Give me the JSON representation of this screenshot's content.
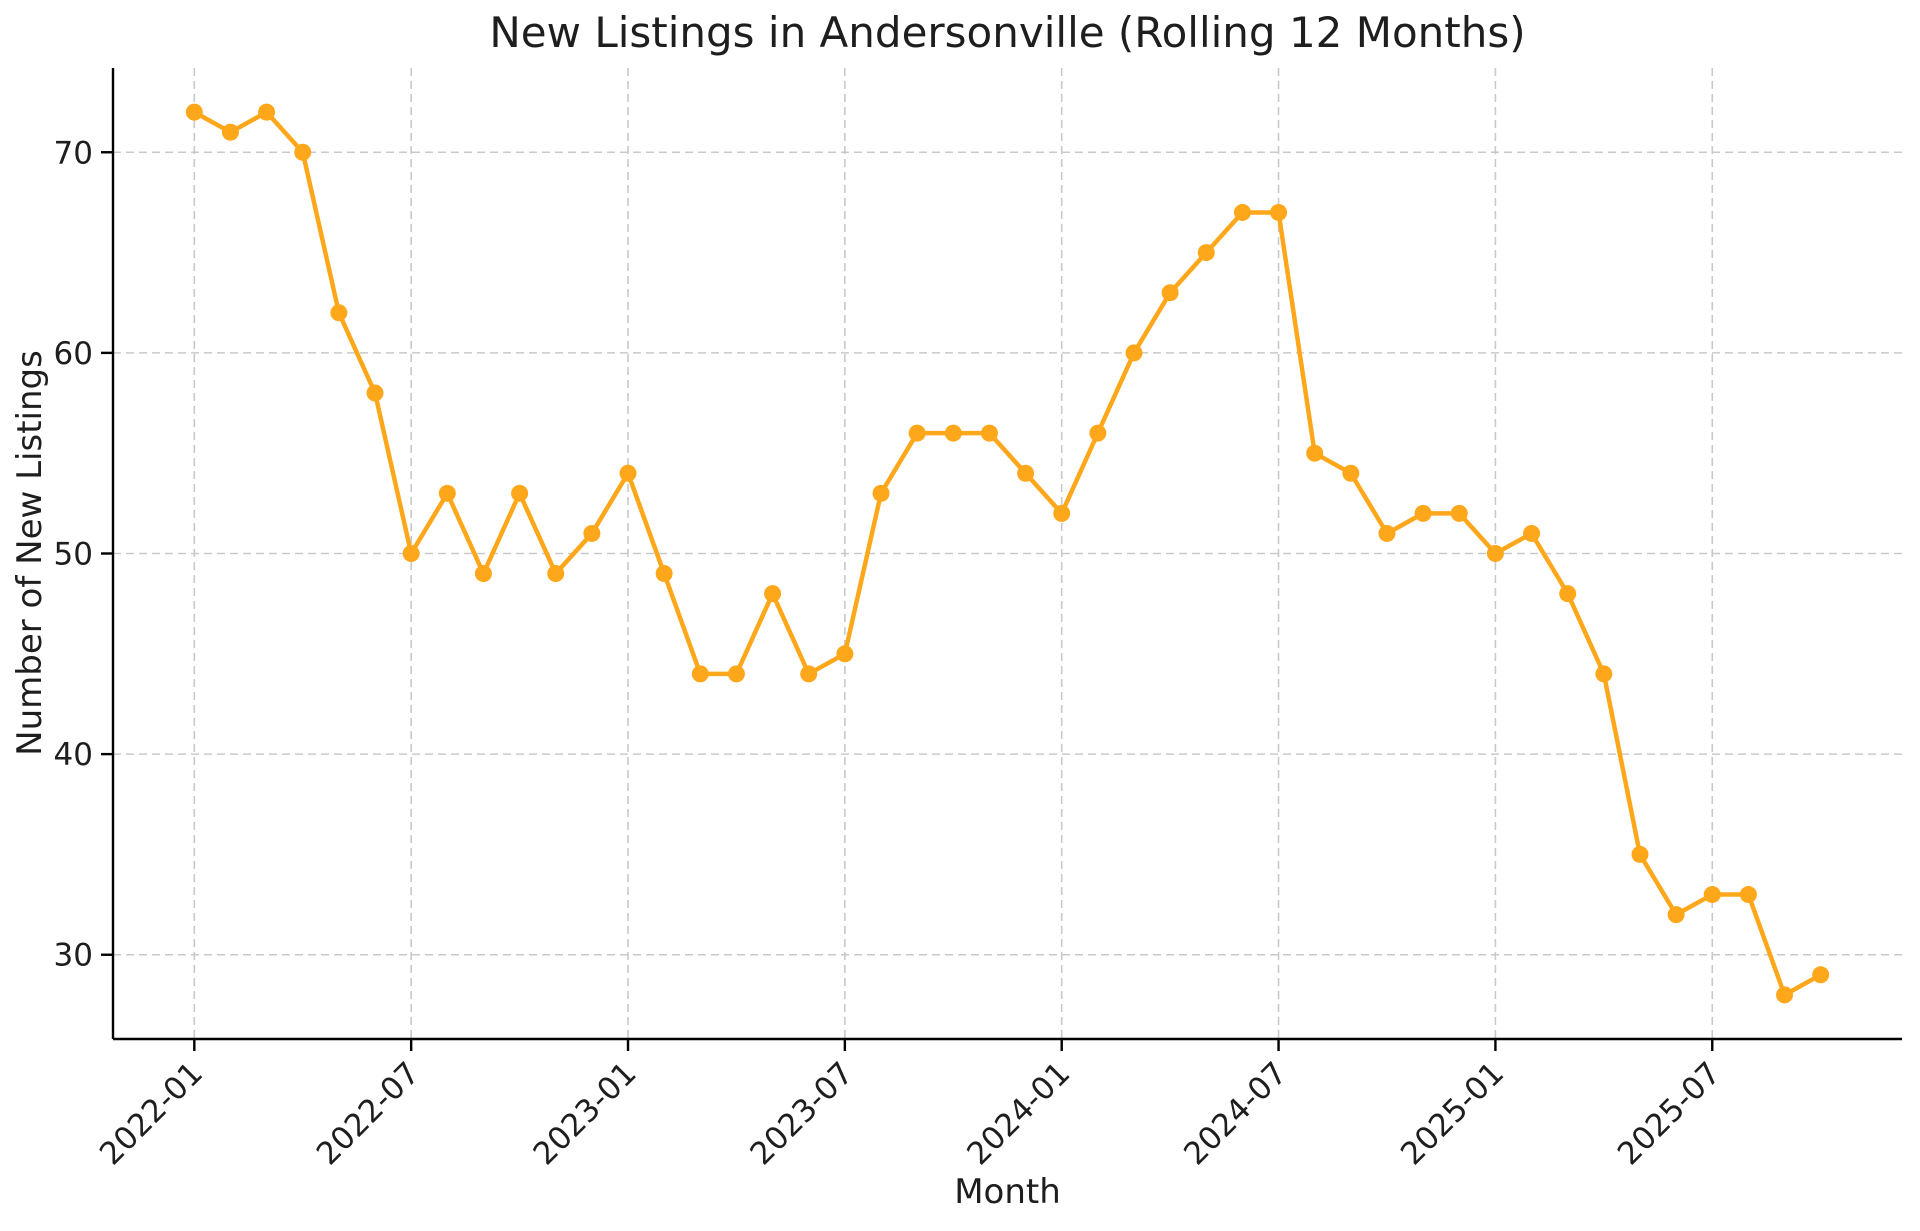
{
  "chart_data": {
    "type": "line",
    "title": "New Listings in Andersonville (Rolling 12 Months)",
    "xlabel": "Month",
    "ylabel": "Number of New Listings",
    "x": [
      "2022-01",
      "2022-02",
      "2022-03",
      "2022-04",
      "2022-05",
      "2022-06",
      "2022-07",
      "2022-08",
      "2022-09",
      "2022-10",
      "2022-11",
      "2022-12",
      "2023-01",
      "2023-02",
      "2023-03",
      "2023-04",
      "2023-05",
      "2023-06",
      "2023-07",
      "2023-08",
      "2023-09",
      "2023-10",
      "2023-11",
      "2023-12",
      "2024-01",
      "2024-02",
      "2024-03",
      "2024-04",
      "2024-05",
      "2024-06",
      "2024-07",
      "2024-08",
      "2024-09",
      "2024-10",
      "2024-11",
      "2024-12",
      "2025-01",
      "2025-02",
      "2025-03",
      "2025-04",
      "2025-05",
      "2025-06",
      "2025-07",
      "2025-08",
      "2025-09",
      "2025-10"
    ],
    "values": [
      72,
      71,
      72,
      70,
      62,
      58,
      50,
      53,
      49,
      53,
      49,
      51,
      54,
      49,
      44,
      44,
      48,
      44,
      45,
      53,
      56,
      56,
      56,
      54,
      52,
      56,
      60,
      63,
      65,
      67,
      67,
      55,
      54,
      51,
      52,
      52,
      50,
      51,
      48,
      44,
      35,
      32,
      33,
      33,
      28,
      29
    ],
    "x_tick_labels": [
      "2022-01",
      "2022-07",
      "2023-01",
      "2023-07",
      "2024-01",
      "2024-07",
      "2025-01",
      "2025-07"
    ],
    "y_ticks": [
      30,
      40,
      50,
      60,
      70
    ],
    "ylim": [
      25.8,
      74.2
    ],
    "grid": true,
    "grid_style": "dashed",
    "legend": "none",
    "line_color": "#FFA71A",
    "marker": "circle",
    "grid_color": "#c9c9c9",
    "axis_color": "#000000",
    "text_color": "#1e1e1e"
  }
}
